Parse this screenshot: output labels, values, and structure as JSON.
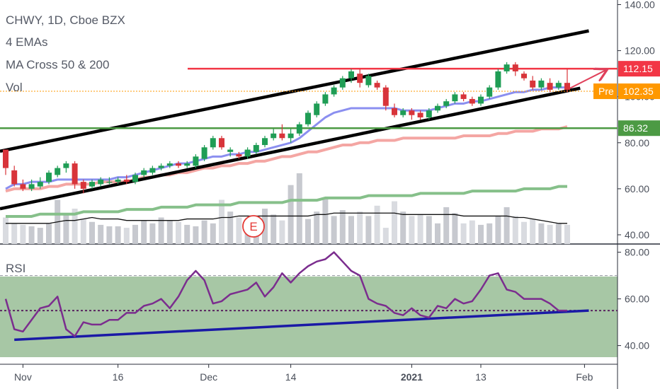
{
  "chart_data": {
    "type": "candlestick",
    "title": "CHWY, 1D, Cboe BZX",
    "legend": [
      "4 EMAs",
      "MA Cross 50 & 200",
      "Vol"
    ],
    "price_axis": {
      "ticks": [
        "140.00",
        "120.00",
        "100.00",
        "80.00",
        "60.00",
        "40.00"
      ],
      "ylim": [
        36,
        142
      ]
    },
    "rsi_axis": {
      "label": "RSI",
      "ticks": [
        "80.00",
        "60.00",
        "40.00"
      ],
      "ylim": [
        32,
        82
      ],
      "band": [
        30,
        70
      ],
      "midline": 55
    },
    "time_axis": {
      "ticks": [
        "Nov",
        "16",
        "Dec",
        "14",
        "2021",
        "13",
        "Feb"
      ]
    },
    "price_tags": [
      {
        "label": "",
        "value": "112.15",
        "color": "#f23645"
      },
      {
        "label": "Pre",
        "value": "102.35",
        "color": "#ff9800"
      },
      {
        "label": "",
        "value": "86.32",
        "color": "#4c9a44"
      }
    ],
    "earnings_marker": "E",
    "colors": {
      "up": "#26a69a",
      "down": "#ef5350",
      "ema_fast": "#8b8ff0",
      "ema_slow": "#f4a6a3",
      "ma200": "#86c08a",
      "channel": "#000000",
      "resistance": "#f23645",
      "support": "#4c9a44",
      "rsi": "#7b2d8e",
      "rsi_trend": "#1a1aa6"
    },
    "candles": [
      [
        77,
        69,
        72,
        66
      ],
      [
        68,
        62,
        70,
        61
      ],
      [
        62,
        60,
        64,
        59
      ],
      [
        60,
        62,
        64,
        59
      ],
      [
        61,
        63,
        65,
        60
      ],
      [
        63,
        67,
        68,
        62
      ],
      [
        66,
        69,
        70,
        65
      ],
      [
        69,
        71,
        72,
        67
      ],
      [
        71,
        62,
        72,
        60
      ],
      [
        63,
        60,
        64,
        58
      ],
      [
        61,
        63,
        64,
        60
      ],
      [
        62,
        64,
        65,
        61
      ],
      [
        63,
        63,
        65,
        62
      ],
      [
        63,
        64,
        65,
        62
      ],
      [
        64,
        63,
        66,
        62
      ],
      [
        63,
        66,
        67,
        62
      ],
      [
        66,
        68,
        69,
        65
      ],
      [
        67,
        69,
        70,
        66
      ],
      [
        69,
        70,
        71,
        68
      ],
      [
        70,
        71,
        72,
        69
      ],
      [
        71,
        70,
        72,
        69
      ],
      [
        70,
        71,
        72,
        69
      ],
      [
        70,
        74,
        75,
        69
      ],
      [
        73,
        78,
        79,
        72
      ],
      [
        78,
        82,
        83,
        77
      ],
      [
        82,
        78,
        83,
        77
      ],
      [
        76,
        77,
        78,
        74
      ],
      [
        75,
        74,
        76,
        73
      ],
      [
        74,
        77,
        78,
        73
      ],
      [
        76,
        79,
        80,
        75
      ],
      [
        79,
        82,
        83,
        78
      ],
      [
        82,
        84,
        86,
        81
      ],
      [
        84,
        82,
        88,
        81
      ],
      [
        82,
        84,
        86,
        80
      ],
      [
        84,
        88,
        89,
        83
      ],
      [
        88,
        93,
        94,
        87
      ],
      [
        92,
        97,
        98,
        91
      ],
      [
        97,
        101,
        102,
        96
      ],
      [
        101,
        104,
        105,
        100
      ],
      [
        104,
        108,
        109,
        103
      ],
      [
        108,
        111,
        112,
        106
      ],
      [
        110,
        106,
        112,
        104
      ],
      [
        105,
        109,
        110,
        104
      ],
      [
        106,
        104,
        107,
        103
      ],
      [
        104,
        96,
        105,
        94
      ],
      [
        95,
        92,
        97,
        91
      ],
      [
        92,
        94,
        95,
        91
      ],
      [
        94,
        92,
        95,
        90
      ],
      [
        93,
        91,
        94,
        90
      ],
      [
        91,
        94,
        95,
        90
      ],
      [
        94,
        96,
        97,
        93
      ],
      [
        96,
        98,
        99,
        95
      ],
      [
        98,
        101,
        102,
        97
      ],
      [
        101,
        99,
        102,
        98
      ],
      [
        99,
        97,
        100,
        96
      ],
      [
        97,
        100,
        101,
        96
      ],
      [
        100,
        104,
        105,
        99
      ],
      [
        104,
        111,
        112,
        103
      ],
      [
        111,
        114,
        115,
        110
      ],
      [
        114,
        111,
        115,
        109
      ],
      [
        110,
        108,
        111,
        107
      ],
      [
        107,
        104,
        109,
        103
      ],
      [
        104,
        107,
        108,
        103
      ],
      [
        106,
        103,
        108,
        102
      ],
      [
        104,
        106,
        107,
        103
      ],
      [
        106,
        103,
        112,
        102
      ]
    ],
    "volume": [
      18,
      14,
      13,
      12,
      11,
      14,
      30,
      20,
      24,
      17,
      15,
      13,
      12,
      12,
      11,
      13,
      16,
      14,
      18,
      16,
      15,
      13,
      12,
      16,
      14,
      30,
      22,
      18,
      14,
      15,
      24,
      20,
      16,
      40,
      48,
      17,
      22,
      31,
      19,
      23,
      19,
      22,
      19,
      26,
      11,
      29,
      22,
      19,
      20,
      19,
      14,
      25,
      21,
      14,
      16,
      13,
      14,
      19,
      25,
      19,
      15,
      17,
      14,
      13,
      14,
      13
    ],
    "ema_fast": [
      60,
      62,
      62,
      63,
      63,
      63,
      64,
      64,
      64,
      64,
      64,
      64,
      64,
      65,
      65,
      66,
      67,
      68,
      69,
      70,
      71,
      71,
      72,
      73,
      74,
      74,
      75,
      75,
      76,
      76,
      77,
      78,
      79,
      80,
      82,
      85,
      88,
      91,
      93,
      94,
      95,
      95,
      95,
      95,
      95,
      95,
      94,
      94,
      94,
      94,
      95,
      96,
      97,
      97,
      98,
      98,
      99,
      100,
      101,
      102,
      102,
      103,
      103,
      104,
      104,
      104
    ],
    "ema_slow": [
      59,
      60,
      60,
      60,
      60,
      61,
      61,
      62,
      62,
      62,
      62,
      63,
      63,
      63,
      63,
      64,
      65,
      65,
      66,
      66,
      67,
      67,
      68,
      69,
      69,
      70,
      70,
      71,
      71,
      72,
      72,
      73,
      74,
      74,
      75,
      76,
      76,
      77,
      78,
      79,
      79,
      80,
      80,
      81,
      81,
      81,
      82,
      82,
      82,
      82,
      82,
      82,
      82,
      83,
      83,
      83,
      83,
      84,
      84,
      85,
      85,
      85,
      86,
      86,
      86,
      87
    ],
    "ma200": [
      48,
      48,
      48,
      48,
      49,
      49,
      49,
      49,
      49,
      50,
      50,
      50,
      50,
      50,
      51,
      51,
      51,
      51,
      52,
      52,
      52,
      52,
      53,
      53,
      53,
      53,
      53,
      54,
      54,
      54,
      54,
      54,
      54,
      55,
      55,
      55,
      55,
      56,
      56,
      56,
      56,
      56,
      57,
      57,
      57,
      57,
      57,
      57,
      58,
      58,
      58,
      58,
      58,
      58,
      59,
      59,
      59,
      59,
      59,
      59,
      60,
      60,
      60,
      60,
      61,
      61
    ],
    "vol_ma": [
      14,
      14,
      14,
      14,
      14,
      14,
      15,
      16,
      16,
      17,
      18,
      17,
      17,
      17,
      16,
      16,
      16,
      16,
      16,
      16,
      16,
      17,
      17,
      17,
      17,
      18,
      18,
      19,
      19,
      19,
      19,
      19,
      19,
      19,
      19,
      19,
      20,
      20,
      21,
      21,
      21,
      21,
      21,
      21,
      21,
      21,
      20,
      20,
      20,
      20,
      20,
      20,
      20,
      19,
      19,
      19,
      19,
      19,
      19,
      18,
      18,
      17,
      16,
      15,
      14,
      14
    ],
    "rsi": [
      60,
      47,
      46,
      51,
      56,
      57,
      61,
      47,
      44,
      50,
      49,
      49,
      51,
      51,
      54,
      54,
      57,
      58,
      60,
      56,
      61,
      68,
      72,
      68,
      58,
      59,
      62,
      63,
      64,
      67,
      61,
      65,
      71,
      67,
      71,
      74,
      76,
      77,
      80,
      76,
      72,
      70,
      60,
      58,
      57,
      54,
      53,
      56,
      53,
      52,
      57,
      56,
      60,
      58,
      59,
      64,
      70,
      71,
      64,
      63,
      60,
      60,
      60,
      58,
      55,
      55
    ]
  }
}
